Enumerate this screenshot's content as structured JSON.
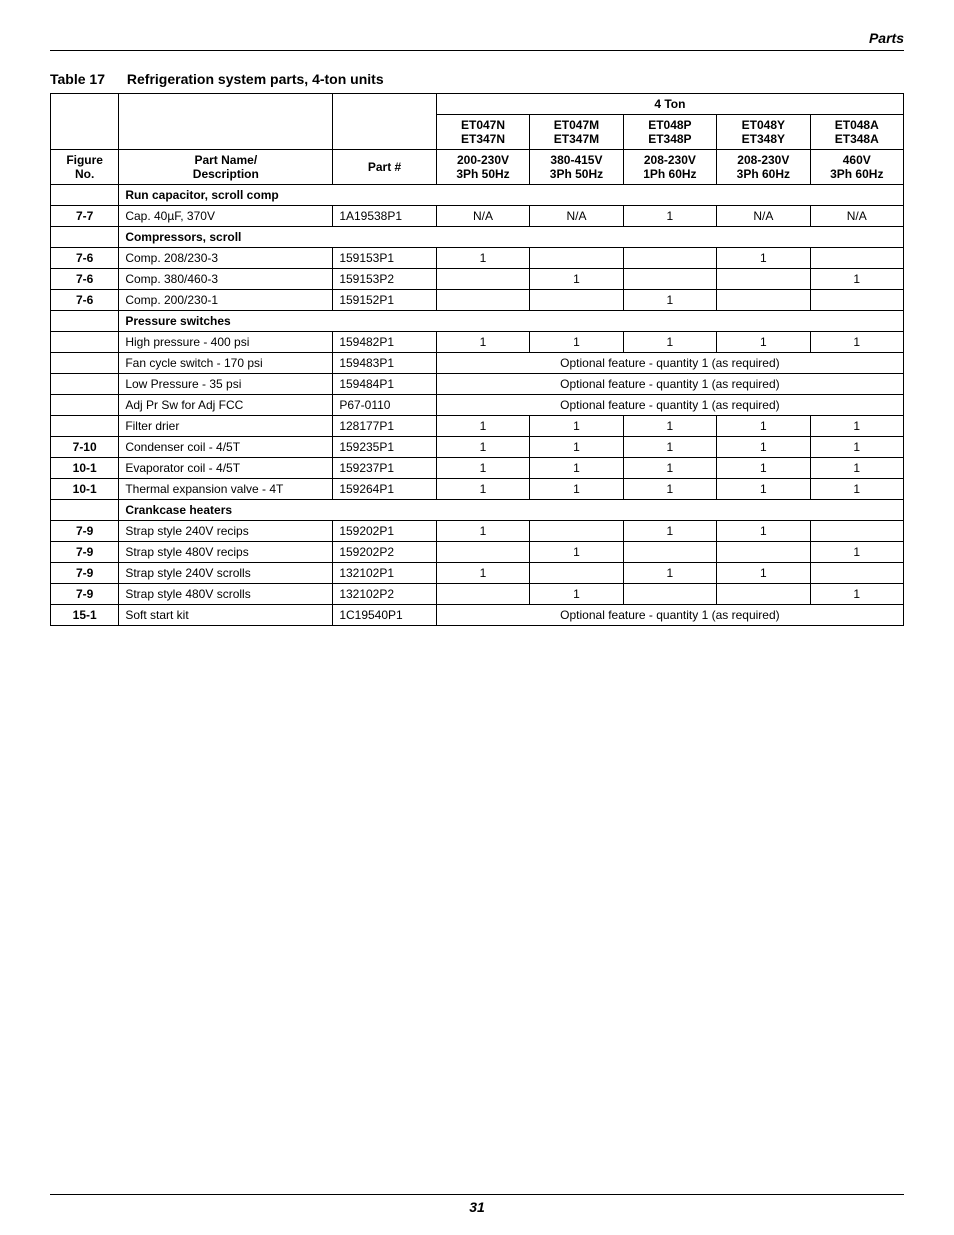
{
  "page": {
    "section_header": "Parts",
    "page_number": "31"
  },
  "caption": {
    "label": "Table 17",
    "title": "Refrigeration system parts, 4-ton units"
  },
  "headers": {
    "group": "4 Ton",
    "fig": "Figure No.",
    "name": "Part Name/ Description",
    "part": "Part #",
    "models": [
      {
        "m1": "ET047N",
        "m2": "ET347N",
        "v": "200-230V 3Ph 50Hz"
      },
      {
        "m1": "ET047M",
        "m2": "ET347M",
        "v": "380-415V 3Ph 50Hz"
      },
      {
        "m1": "ET048P",
        "m2": "ET348P",
        "v": "208-230V 1Ph 60Hz"
      },
      {
        "m1": "ET048Y",
        "m2": "ET348Y",
        "v": "208-230V 3Ph 60Hz"
      },
      {
        "m1": "ET048A",
        "m2": "ET348A",
        "v": "460V 3Ph 60Hz"
      }
    ]
  },
  "optional_text": "Optional feature - quantity 1 (as required)",
  "rows": [
    {
      "type": "section",
      "name": "Run capacitor, scroll comp"
    },
    {
      "fig": "7-7",
      "name": "Cap. 40µF, 370V",
      "part": "1A19538P1",
      "v": [
        "N/A",
        "N/A",
        "1",
        "N/A",
        "N/A"
      ]
    },
    {
      "type": "section",
      "name": "Compressors, scroll"
    },
    {
      "fig": "7-6",
      "name": "Comp. 208/230-3",
      "part": "159153P1",
      "v": [
        "1",
        "",
        "",
        "1",
        ""
      ]
    },
    {
      "fig": "7-6",
      "name": "Comp. 380/460-3",
      "part": "159153P2",
      "v": [
        "",
        "1",
        "",
        "",
        "1"
      ]
    },
    {
      "fig": "7-6",
      "name": "Comp. 200/230-1",
      "part": "159152P1",
      "v": [
        "",
        "",
        "1",
        "",
        ""
      ]
    },
    {
      "type": "section",
      "name": "Pressure switches"
    },
    {
      "fig": "",
      "name": "High pressure - 400 psi",
      "part": "159482P1",
      "v": [
        "1",
        "1",
        "1",
        "1",
        "1"
      ]
    },
    {
      "fig": "",
      "name": "Fan cycle switch - 170 psi",
      "part": "159483P1",
      "span": true
    },
    {
      "fig": "",
      "name": "Low Pressure - 35 psi",
      "part": "159484P1",
      "span": true
    },
    {
      "fig": "",
      "name": "Adj Pr Sw for Adj FCC",
      "part": "P67-0110",
      "span": true
    },
    {
      "fig": "",
      "name": "Filter drier",
      "part": "128177P1",
      "v": [
        "1",
        "1",
        "1",
        "1",
        "1"
      ]
    },
    {
      "fig": "7-10",
      "name": "Condenser coil - 4/5T",
      "part": "159235P1",
      "v": [
        "1",
        "1",
        "1",
        "1",
        "1"
      ]
    },
    {
      "fig": "10-1",
      "name": "Evaporator coil - 4/5T",
      "part": "159237P1",
      "v": [
        "1",
        "1",
        "1",
        "1",
        "1"
      ]
    },
    {
      "fig": "10-1",
      "name": "Thermal expansion valve - 4T",
      "part": "159264P1",
      "v": [
        "1",
        "1",
        "1",
        "1",
        "1"
      ]
    },
    {
      "type": "section",
      "name": "Crankcase heaters"
    },
    {
      "fig": "7-9",
      "name": "Strap style 240V recips",
      "part": "159202P1",
      "v": [
        "1",
        "",
        "1",
        "1",
        ""
      ]
    },
    {
      "fig": "7-9",
      "name": "Strap style 480V recips",
      "part": "159202P2",
      "v": [
        "",
        "1",
        "",
        "",
        "1"
      ]
    },
    {
      "fig": "7-9",
      "name": "Strap style 240V scrolls",
      "part": "132102P1",
      "v": [
        "1",
        "",
        "1",
        "1",
        ""
      ]
    },
    {
      "fig": "7-9",
      "name": "Strap style 480V scrolls",
      "part": "132102P2",
      "v": [
        "",
        "1",
        "",
        "",
        "1"
      ]
    },
    {
      "fig": "15-1",
      "name": "Soft start kit",
      "part": "1C19540P1",
      "span": true
    }
  ]
}
